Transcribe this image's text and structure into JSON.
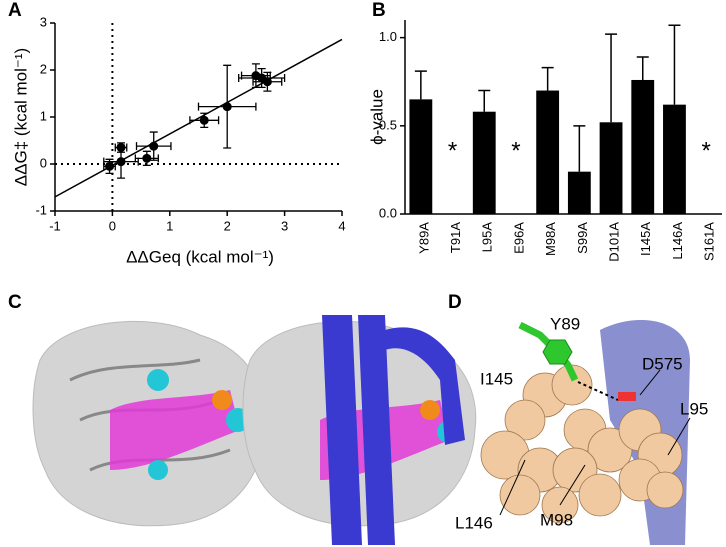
{
  "panels": [
    "A",
    "B",
    "C",
    "D"
  ],
  "structure_labels": [
    "Y89",
    "I145",
    "D575",
    "L95",
    "L146",
    "M98"
  ],
  "chart_data": [
    {
      "type": "scatter",
      "xlabel": "ΔΔGeq (kcal mol⁻¹)",
      "ylabel": "ΔΔG‡ (kcal mol⁻¹)",
      "x": [
        -0.05,
        0.15,
        0.15,
        0.6,
        0.72,
        1.6,
        2.0,
        2.5,
        2.6,
        2.7
      ],
      "values": [
        -0.05,
        0.35,
        0.05,
        0.12,
        0.38,
        0.93,
        1.22,
        1.88,
        1.83,
        1.75
      ],
      "x_errors": [
        0.1,
        0.1,
        0.3,
        0.2,
        0.3,
        0.25,
        0.5,
        0.25,
        0.4,
        0.25
      ],
      "errors": [
        0.15,
        0.1,
        0.35,
        0.15,
        0.3,
        0.15,
        0.88,
        0.25,
        0.2,
        0.2
      ],
      "color": "#000000",
      "fit_line": {
        "x": [
          -1,
          4
        ],
        "y": [
          -0.7,
          2.65
        ]
      },
      "reference_lines": {
        "x": 0,
        "y": 0
      },
      "xlim": [
        -1,
        4
      ],
      "ylim": [
        -1,
        3
      ],
      "xticks": [
        -1,
        0,
        1,
        2,
        3,
        4
      ],
      "yticks": [
        -1,
        0,
        1,
        2,
        3
      ]
    },
    {
      "type": "bar",
      "ylabel": "ϕ-value",
      "categories": [
        "Y89A",
        "T91A",
        "L95A",
        "E96A",
        "M98A",
        "S99A",
        "D101A",
        "I145A",
        "L146A",
        "S161A"
      ],
      "values": [
        0.65,
        null,
        0.58,
        null,
        0.7,
        0.24,
        0.52,
        0.76,
        0.62,
        null
      ],
      "value_labels": [
        null,
        "*",
        null,
        "*",
        null,
        null,
        null,
        null,
        null,
        "*"
      ],
      "errors": [
        0.16,
        null,
        0.12,
        null,
        0.13,
        0.26,
        0.5,
        0.13,
        0.45,
        null
      ],
      "color": "#000000",
      "ylim": [
        0,
        1.1
      ],
      "yticks": [
        {
          "value": 0,
          "label": "0.0"
        },
        {
          "value": 0.5,
          "label": "0.5"
        },
        {
          "value": 1,
          "label": "1.0"
        }
      ]
    }
  ]
}
